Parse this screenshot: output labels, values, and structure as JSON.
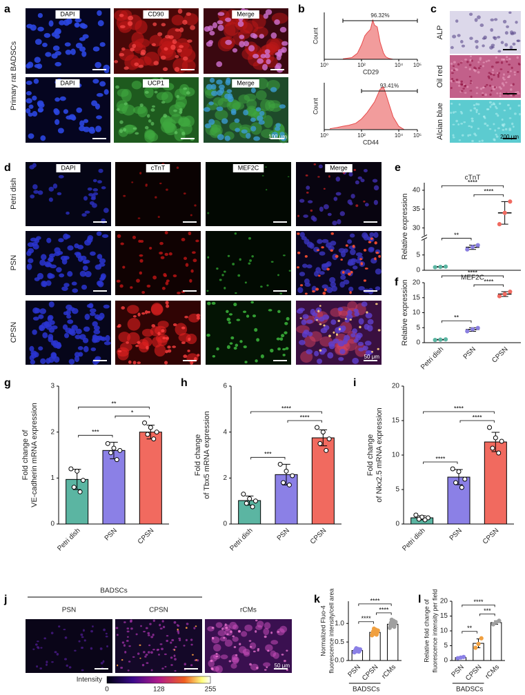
{
  "figure": {
    "a": {
      "letter": "a",
      "row_label": "Primary rat BADSCs",
      "labels": [
        [
          "DAPI",
          "CD90",
          "Merge"
        ],
        [
          "DAPI",
          "UCP1",
          "Merge"
        ]
      ],
      "scale": "100 μm"
    },
    "c": {
      "letter": "c",
      "labels": [
        "ALP",
        "Oil red",
        "Alcian blue"
      ],
      "scale": "200 μm"
    },
    "d": {
      "letter": "d",
      "columns": [
        "DAPI",
        "cTnT",
        "MEF2C",
        "Merge"
      ],
      "rows": [
        "Petri dish",
        "PSN",
        "CPSN"
      ],
      "scale": "50 μm"
    },
    "j": {
      "letter": "j",
      "group": "BADSCs",
      "columns": [
        "PSN",
        "CPSN",
        "rCMs"
      ],
      "scale": "50 μm",
      "colorbar": {
        "label": "Intensity",
        "ticks": [
          0,
          128,
          255
        ]
      }
    }
  },
  "chart_data": [
    {
      "type": "area",
      "panel": "b",
      "ylabel": "Count",
      "xlabel": "CD29",
      "annotation": "96.32%",
      "gate": [
        10,
        100000
      ],
      "color": "#e84a4a",
      "log_x": true,
      "x": [
        10,
        30,
        60,
        100,
        150,
        200,
        300,
        400,
        500,
        700,
        1000,
        1500,
        2000,
        3000,
        5000
      ],
      "values": [
        1,
        4,
        14,
        34,
        55,
        62,
        70,
        92,
        80,
        76,
        40,
        15,
        6,
        2,
        0
      ],
      "xlim": [
        1,
        100000
      ],
      "xticks": [
        {
          "value": 1,
          "label": "10⁰"
        },
        {
          "value": 100,
          "label": "10²"
        },
        {
          "value": 10000,
          "label": "10⁴"
        },
        {
          "value": 100000,
          "label": "10⁵"
        }
      ],
      "ylim": [
        0,
        110
      ]
    },
    {
      "type": "area",
      "ylabel": "Count",
      "xlabel": "CD44",
      "annotation": "93.41%",
      "gate": [
        100,
        100000
      ],
      "color": "#e84a4a",
      "log_x": true,
      "x": [
        2,
        5,
        10,
        20,
        50,
        100,
        200,
        500,
        1000,
        1500,
        2000,
        3000,
        5000,
        10000,
        20000
      ],
      "values": [
        2,
        5,
        8,
        10,
        15,
        25,
        40,
        65,
        95,
        100,
        85,
        60,
        30,
        8,
        0
      ],
      "xlim": [
        1,
        100000
      ],
      "xticks": [
        {
          "value": 1,
          "label": "10⁰"
        },
        {
          "value": 100,
          "label": "10²"
        },
        {
          "value": 10000,
          "label": "10⁴"
        },
        {
          "value": 100000,
          "label": "10⁵"
        }
      ],
      "ylim": [
        0,
        110
      ]
    },
    {
      "type": "dot",
      "panel": "e",
      "title": "cTnT",
      "ylabel": [
        "Relative expression"
      ],
      "means": [
        1.1,
        7.5,
        34
      ],
      "errors": [
        0.1,
        0.7,
        3
      ],
      "points": [
        [
          1.0,
          1.1,
          1.2
        ],
        [
          6.8,
          7.6,
          8.2
        ],
        [
          31,
          34,
          37
        ]
      ],
      "point_colors": [
        "#5bb5a2",
        "#8a7fe0",
        "#f06a60"
      ],
      "point_style": "filled",
      "ylim": [
        0,
        42
      ],
      "ybreak": [
        10,
        28
      ],
      "yticks": [
        0,
        5,
        30,
        35,
        40
      ],
      "significance": [
        {
          "pair": [
            0,
            1
          ],
          "label": "**"
        },
        {
          "pair": [
            1,
            2
          ],
          "label": "****"
        },
        {
          "pair": [
            0,
            2
          ],
          "label": "****"
        }
      ]
    },
    {
      "type": "dot",
      "panel": "f",
      "title": "MEF2C",
      "ylabel": [
        "Relative expression"
      ],
      "categories": [
        "Petri dish",
        "PSN",
        "CPSN"
      ],
      "means": [
        1.0,
        4.4,
        16.2
      ],
      "errors": [
        0.1,
        0.6,
        0.8
      ],
      "points": [
        [
          0.9,
          1.0,
          1.1
        ],
        [
          3.8,
          4.5,
          4.9
        ],
        [
          15.5,
          16.2,
          17
        ]
      ],
      "point_colors": [
        "#5bb5a2",
        "#8a7fe0",
        "#f06a60"
      ],
      "point_style": "filled",
      "ylim": [
        0,
        20
      ],
      "yticks": [
        0,
        5,
        10,
        15,
        20
      ],
      "significance": [
        {
          "pair": [
            0,
            1
          ],
          "label": "**"
        },
        {
          "pair": [
            1,
            2
          ],
          "label": "****"
        },
        {
          "pair": [
            0,
            2
          ],
          "label": "****"
        }
      ]
    },
    {
      "type": "bar",
      "panel": "g",
      "ylabel": [
        "Fold change of",
        "VE-cadherin mRNA expression"
      ],
      "categories": [
        "Petri dish",
        "PSN",
        "CPSN"
      ],
      "means": [
        0.97,
        1.6,
        2.0
      ],
      "errors": [
        0.22,
        0.18,
        0.15
      ],
      "points": [
        [
          1.2,
          1.15,
          0.95,
          0.8,
          0.7
        ],
        [
          1.75,
          1.65,
          1.6,
          1.55,
          1.4
        ],
        [
          2.2,
          2.1,
          2.0,
          1.95,
          1.85
        ]
      ],
      "bar_colors": [
        "#5bb5a2",
        "#8b80e6",
        "#f16a5f"
      ],
      "point_style": "open",
      "ylim": [
        0,
        3
      ],
      "yticks": [
        0,
        1,
        2,
        3
      ],
      "significance": [
        {
          "pair": [
            0,
            1
          ],
          "label": "***"
        },
        {
          "pair": [
            1,
            2
          ],
          "label": "*"
        },
        {
          "pair": [
            0,
            2
          ],
          "label": "**"
        }
      ]
    },
    {
      "type": "bar",
      "panel": "h",
      "ylabel": [
        "Fold change",
        "of Tbx5 mRNA expression"
      ],
      "categories": [
        "Petri dish",
        "PSN",
        "CPSN"
      ],
      "means": [
        1.02,
        2.15,
        3.75
      ],
      "errors": [
        0.2,
        0.45,
        0.35
      ],
      "points": [
        [
          1.3,
          1.1,
          1.0,
          0.9,
          0.75
        ],
        [
          2.6,
          2.3,
          2.1,
          1.8,
          1.7
        ],
        [
          4.2,
          4.0,
          3.7,
          3.5,
          3.2
        ]
      ],
      "bar_colors": [
        "#5bb5a2",
        "#8b80e6",
        "#f16a5f"
      ],
      "point_style": "open",
      "ylim": [
        0,
        6
      ],
      "yticks": [
        0,
        2,
        4,
        6
      ],
      "significance": [
        {
          "pair": [
            0,
            1
          ],
          "label": "***"
        },
        {
          "pair": [
            1,
            2
          ],
          "label": "****"
        },
        {
          "pair": [
            0,
            2
          ],
          "label": "****"
        }
      ]
    },
    {
      "type": "bar",
      "panel": "i",
      "ylabel": [
        "Fold change",
        "of Nkx2.5 mRNA expression"
      ],
      "categories": [
        "Petri dish",
        "PSN",
        "CPSN"
      ],
      "means": [
        0.9,
        6.8,
        11.9
      ],
      "errors": [
        0.3,
        1.1,
        1.4
      ],
      "points": [
        [
          1.3,
          1.0,
          0.9,
          0.7,
          0.6
        ],
        [
          8.0,
          7.6,
          6.5,
          6.0,
          5.3
        ],
        [
          14,
          12.5,
          12,
          11,
          10.3
        ]
      ],
      "bar_colors": [
        "#5bb5a2",
        "#8b80e6",
        "#f16a5f"
      ],
      "point_style": "open",
      "ylim": [
        0,
        20
      ],
      "yticks": [
        0,
        5,
        10,
        15,
        20
      ],
      "significance": [
        {
          "pair": [
            0,
            1
          ],
          "label": "****"
        },
        {
          "pair": [
            1,
            2
          ],
          "label": "****"
        },
        {
          "pair": [
            0,
            2
          ],
          "label": "****"
        }
      ]
    },
    {
      "type": "bar",
      "panel": "k",
      "ylabel": [
        "Normalized Fluo-4",
        "fluorescence intensity/cell area"
      ],
      "categories": [
        "PSN",
        "CPSN",
        "rCMs"
      ],
      "group": "BADSCs",
      "means": [
        0.27,
        0.76,
        0.98
      ],
      "errors": [
        0.04,
        0.06,
        0.07
      ],
      "points": [
        [
          0.22,
          0.24,
          0.25,
          0.26,
          0.27,
          0.28,
          0.29,
          0.3,
          0.31,
          0.33
        ],
        [
          0.68,
          0.7,
          0.72,
          0.74,
          0.76,
          0.77,
          0.79,
          0.81,
          0.83,
          0.86
        ],
        [
          0.88,
          0.91,
          0.94,
          0.96,
          0.98,
          1.0,
          1.02,
          1.04,
          1.07,
          1.1
        ]
      ],
      "bar_colors": [
        "#ffffff",
        "#ffffff",
        "#ffffff"
      ],
      "point_colors": [
        "#8b80e6",
        "#f0a040",
        "#a0a0a0"
      ],
      "point_style": "filled",
      "ylim": [
        0,
        1.6
      ],
      "yticks": [
        {
          "value": 0,
          "label": "0.0"
        },
        0.5,
        {
          "value": 1,
          "label": "1.0"
        }
      ],
      "significance": [
        {
          "pair": [
            0,
            1
          ],
          "label": "****"
        },
        {
          "pair": [
            1,
            2
          ],
          "label": "****"
        },
        {
          "pair": [
            0,
            2
          ],
          "label": "****"
        }
      ]
    },
    {
      "type": "bar",
      "panel": "l",
      "ylabel": [
        "Relative fold change of",
        "fluorescence intensity per field"
      ],
      "categories": [
        "PSN",
        "CPSN",
        "rCMs"
      ],
      "group": "BADSCs",
      "means": [
        1.0,
        5.8,
        12.8
      ],
      "errors": [
        0.2,
        1.5,
        0.6
      ],
      "points": [
        [
          0.8,
          1.0,
          1.2
        ],
        [
          4.3,
          5.6,
          7.5
        ],
        [
          12.2,
          12.9,
          13.4
        ]
      ],
      "bar_colors": [
        "#ffffff",
        "#ffffff",
        "#ffffff"
      ],
      "point_colors": [
        "#8b80e6",
        "#f0a040",
        "#a0a0a0"
      ],
      "point_style": "filled",
      "ylim": [
        0,
        20
      ],
      "yticks": [
        0,
        5,
        10,
        15,
        20
      ],
      "significance": [
        {
          "pair": [
            0,
            1
          ],
          "label": "**"
        },
        {
          "pair": [
            1,
            2
          ],
          "label": "***"
        },
        {
          "pair": [
            0,
            2
          ],
          "label": "****"
        }
      ]
    }
  ]
}
